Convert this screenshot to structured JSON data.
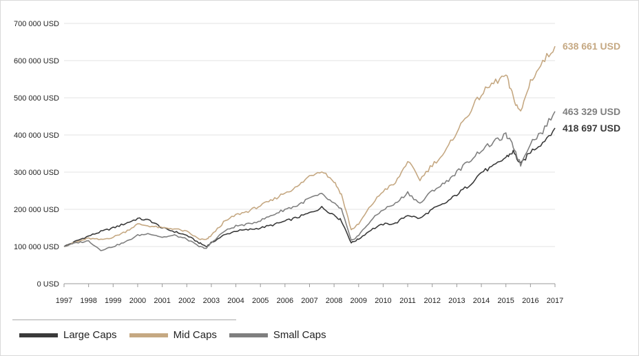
{
  "chart_data": {
    "type": "line",
    "title": "",
    "xlabel": "",
    "ylabel": "",
    "x_ticks": [
      "1997",
      "1998",
      "1999",
      "2000",
      "2001",
      "2002",
      "2003",
      "2004",
      "2005",
      "2006",
      "2007",
      "2008",
      "2009",
      "2010",
      "2011",
      "2012",
      "2013",
      "2014",
      "2015",
      "2016",
      "2017"
    ],
    "y_ticks": [
      "0 USD",
      "100 000 USD",
      "200 000 USD",
      "300 000 USD",
      "400 000 USD",
      "500 000 USD",
      "600 000 USD",
      "700 000 USD"
    ],
    "ylim": [
      0,
      700000
    ],
    "xlim": [
      1997,
      2017
    ],
    "grid": "horizontal",
    "legend_position": "bottom-left",
    "series": [
      {
        "name": "Large Caps",
        "color": "#3a3a3a",
        "end_label": "418 697 USD",
        "x": [
          1997,
          1997.5,
          1998,
          1998.5,
          1999,
          1999.5,
          2000,
          2000.5,
          2001,
          2001.5,
          2002,
          2002.5,
          2002.8,
          2003,
          2003.5,
          2004,
          2004.5,
          2005,
          2005.5,
          2006,
          2006.5,
          2007,
          2007.5,
          2008,
          2008.3,
          2008.7,
          2009,
          2009.5,
          2010,
          2010.5,
          2011,
          2011.5,
          2012,
          2012.5,
          2013,
          2013.5,
          2014,
          2014.5,
          2015,
          2015.3,
          2015.6,
          2016,
          2016.5,
          2017
        ],
        "y": [
          100000,
          115000,
          128000,
          140000,
          150000,
          162000,
          175000,
          170000,
          150000,
          140000,
          130000,
          110000,
          100000,
          110000,
          130000,
          142000,
          145000,
          150000,
          158000,
          168000,
          178000,
          190000,
          205000,
          185000,
          170000,
          110000,
          120000,
          145000,
          160000,
          162000,
          185000,
          175000,
          200000,
          215000,
          240000,
          265000,
          300000,
          315000,
          340000,
          355000,
          320000,
          355000,
          380000,
          418697
        ]
      },
      {
        "name": "Mid Caps",
        "color": "#c5a882",
        "end_label": "638 661 USD",
        "x": [
          1997,
          1997.5,
          1998,
          1998.5,
          1999,
          1999.5,
          2000,
          2000.5,
          2001,
          2001.5,
          2002,
          2002.5,
          2002.8,
          2003,
          2003.5,
          2004,
          2004.5,
          2005,
          2005.5,
          2006,
          2006.5,
          2007,
          2007.5,
          2008,
          2008.3,
          2008.7,
          2009,
          2009.5,
          2010,
          2010.5,
          2011,
          2011.5,
          2012,
          2012.5,
          2013,
          2013.5,
          2014,
          2014.5,
          2015,
          2015.3,
          2015.6,
          2016,
          2016.5,
          2017
        ],
        "y": [
          100000,
          112000,
          122000,
          118000,
          125000,
          140000,
          160000,
          155000,
          150000,
          148000,
          140000,
          120000,
          118000,
          130000,
          165000,
          185000,
          195000,
          210000,
          225000,
          245000,
          260000,
          290000,
          305000,
          275000,
          240000,
          145000,
          160000,
          210000,
          250000,
          270000,
          330000,
          280000,
          320000,
          350000,
          410000,
          460000,
          510000,
          540000,
          560000,
          500000,
          460000,
          545000,
          595000,
          638661
        ]
      },
      {
        "name": "Small Caps",
        "color": "#7f7f7f",
        "end_label": "463 329 USD",
        "x": [
          1997,
          1997.5,
          1998,
          1998.5,
          1999,
          1999.5,
          2000,
          2000.5,
          2001,
          2001.5,
          2002,
          2002.5,
          2002.8,
          2003,
          2003.5,
          2004,
          2004.5,
          2005,
          2005.5,
          2006,
          2006.5,
          2007,
          2007.5,
          2008,
          2008.3,
          2008.7,
          2009,
          2009.5,
          2010,
          2010.5,
          2011,
          2011.5,
          2012,
          2012.5,
          2013,
          2013.5,
          2014,
          2014.5,
          2015,
          2015.3,
          2015.6,
          2016,
          2016.5,
          2017
        ],
        "y": [
          100000,
          110000,
          115000,
          90000,
          100000,
          112000,
          130000,
          135000,
          125000,
          130000,
          120000,
          100000,
          95000,
          110000,
          140000,
          155000,
          160000,
          170000,
          185000,
          200000,
          210000,
          230000,
          240000,
          215000,
          200000,
          115000,
          130000,
          170000,
          200000,
          215000,
          245000,
          215000,
          250000,
          270000,
          300000,
          330000,
          360000,
          380000,
          400000,
          370000,
          320000,
          380000,
          410000,
          463329
        ]
      }
    ]
  },
  "legend": {
    "items": [
      {
        "label": "Large Caps",
        "color": "#3a3a3a"
      },
      {
        "label": "Mid Caps",
        "color": "#c5a882"
      },
      {
        "label": "Small Caps",
        "color": "#7f7f7f"
      }
    ]
  }
}
